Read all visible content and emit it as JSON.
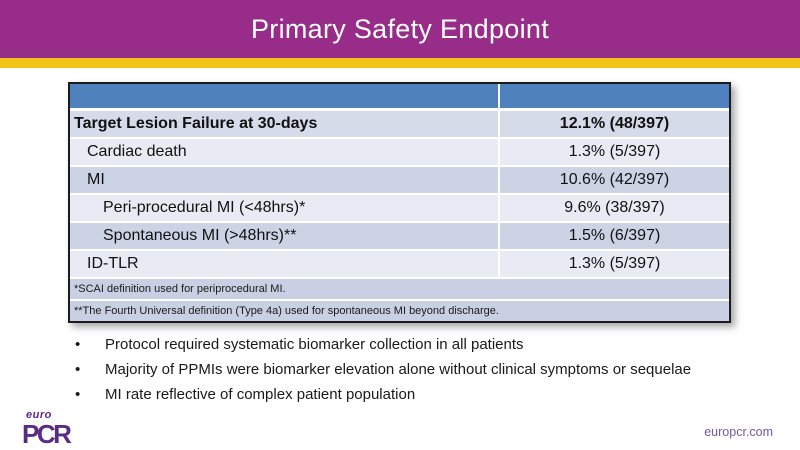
{
  "title_bar": {
    "title": "Primary Safety Endpoint"
  },
  "table": {
    "header": {
      "endpoint_col": "",
      "value_col": ""
    },
    "rows": [
      {
        "label": "Target Lesion Failure at 30-days",
        "value": "12.1% (48/397)"
      },
      {
        "label": "Cardiac death",
        "value": "1.3% (5/397)"
      },
      {
        "label": "MI",
        "value": "10.6% (42/397)"
      },
      {
        "label": "Peri-procedural MI (<48hrs)*",
        "value": "9.6% (38/397)"
      },
      {
        "label": "Spontaneous MI (>48hrs)**",
        "value": "1.5% (6/397)"
      },
      {
        "label": "ID-TLR",
        "value": "1.3% (5/397)"
      }
    ],
    "footnotes": [
      "*SCAI definition used for periprocedural MI.",
      "**The Fourth Universal definition (Type 4a) used for spontaneous MI beyond discharge."
    ]
  },
  "bullets": [
    "Protocol required systematic biomarker collection in all patients",
    "Majority of PPMIs were biomarker elevation alone without clinical symptoms or sequelae",
    "MI rate reflective of complex patient population"
  ],
  "footer": {
    "logo_top": "euro",
    "logo_main": "PCR",
    "link": "europcr.com"
  },
  "colors": {
    "title_bar_purple": "#972d88",
    "accent_strip_gold": "#f2c318",
    "table_header_blue": "#4f81bd",
    "row_light": "#e9ebf4",
    "row_dark": "#ccd3e5",
    "row_first": "#d6dbe9",
    "footnote_bg": "#c9d0e3",
    "logo_purple": "#5b2c83",
    "link_purple": "#6f58a8"
  }
}
